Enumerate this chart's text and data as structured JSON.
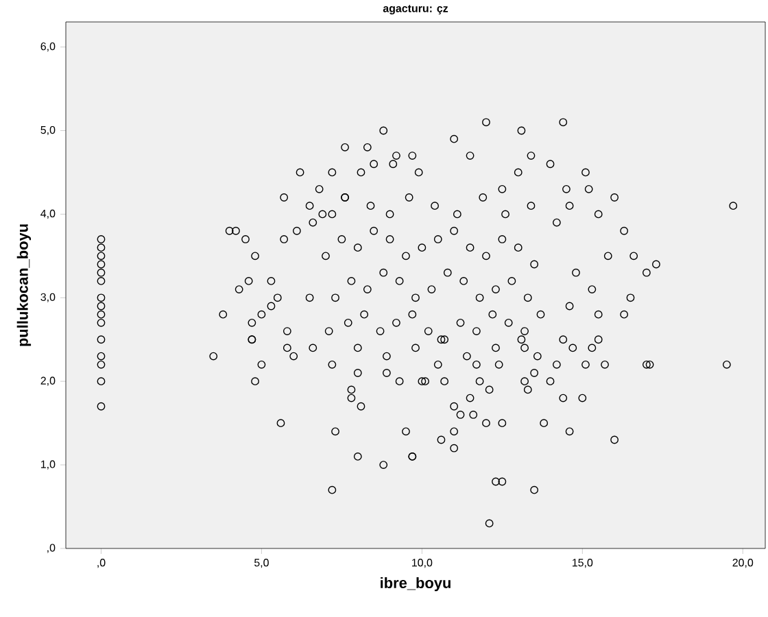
{
  "chart_data": {
    "type": "scatter",
    "title": "agacturu: çz",
    "xlabel": "ibre_boyu",
    "ylabel": "pullukocan_boyu",
    "xlim": [
      -1.1,
      20.7
    ],
    "ylim": [
      0,
      6.3
    ],
    "xticks": [
      {
        "value": 0,
        "label": ",0"
      },
      {
        "value": 5,
        "label": "5,0"
      },
      {
        "value": 10,
        "label": "10,0"
      },
      {
        "value": 15,
        "label": "15,0"
      },
      {
        "value": 20,
        "label": "20,0"
      }
    ],
    "yticks": [
      {
        "value": 0,
        "label": ",0"
      },
      {
        "value": 1,
        "label": "1,0"
      },
      {
        "value": 2,
        "label": "2,0"
      },
      {
        "value": 3,
        "label": "3,0"
      },
      {
        "value": 4,
        "label": "4,0"
      },
      {
        "value": 5,
        "label": "5,0"
      },
      {
        "value": 6,
        "label": "6,0"
      }
    ],
    "grid": false,
    "marker": "circle",
    "series": [
      {
        "color": "#000000",
        "x": [
          0,
          0,
          0,
          0,
          0,
          0,
          0,
          0,
          0,
          0,
          0,
          0,
          0,
          0,
          0,
          8.8,
          7.6,
          8.3,
          6.2,
          7.2,
          5.7,
          4.0,
          4.2,
          4.5,
          4.8,
          5.7,
          6.1,
          4.6,
          4.3,
          3.8,
          5.3,
          4.7,
          5.0,
          4.7,
          5.8,
          5.3,
          5.5,
          6.5,
          6.8,
          6.5,
          7.2,
          6.6,
          7.6,
          8.1,
          9.2,
          9.7,
          8.5,
          9.1,
          12.0,
          14.4,
          13.1,
          11.0,
          11.5,
          13.4,
          14.0,
          15.1,
          14.5,
          15.2,
          16.0,
          19.7,
          15.5,
          14.6,
          16.3,
          15.8,
          16.6,
          17.3,
          17.0,
          15.3,
          16.5,
          16.3,
          15.5,
          14.6,
          14.8,
          13.0,
          12.5,
          9.9,
          3.5,
          4.7,
          5.0,
          4.8,
          5.6,
          7.3,
          8.0,
          8.8,
          7.2,
          9.5,
          9.7,
          7.8,
          7.8,
          8.1,
          5.8,
          6.0,
          6.6,
          7.2,
          8.0,
          8.9,
          9.3,
          10.0,
          12.1,
          12.3,
          12.5,
          13.5,
          9.7,
          11.0,
          10.6,
          11.0,
          12.0,
          12.5,
          13.8,
          14.6,
          16.0,
          11.0,
          11.2,
          11.6,
          14.4,
          15.0,
          13.3,
          11.5,
          19.5,
          17.0,
          17.1,
          15.7,
          15.1,
          14.2,
          15.5,
          15.3,
          14.7,
          13.6,
          13.2,
          14.4,
          13.5,
          14.0,
          13.2,
          11.8,
          10.7,
          10.1,
          12.4,
          11.7,
          10.5,
          12.1,
          7.0,
          7.5,
          8.0,
          8.5,
          9.0,
          9.5,
          10.0,
          10.5,
          11.0,
          11.5,
          12.0,
          12.5,
          13.0,
          13.5,
          7.3,
          7.8,
          8.3,
          8.8,
          9.3,
          9.8,
          10.3,
          10.8,
          11.3,
          11.8,
          12.3,
          12.8,
          13.3,
          7.1,
          7.7,
          8.2,
          8.7,
          9.2,
          9.7,
          10.2,
          10.7,
          11.2,
          11.7,
          12.2,
          12.7,
          13.2,
          13.7,
          6.9,
          7.6,
          8.4,
          9.0,
          9.6,
          10.4,
          11.1,
          11.9,
          12.6,
          13.4,
          8.0,
          8.9,
          9.8,
          10.6,
          11.4,
          12.3,
          13.1,
          14.2
        ],
        "values": [
          3.7,
          3.6,
          3.5,
          3.4,
          3.3,
          3.2,
          3.0,
          2.9,
          2.8,
          2.7,
          2.5,
          2.3,
          2.2,
          2.0,
          1.7,
          5.0,
          4.8,
          4.8,
          4.5,
          4.5,
          4.2,
          3.8,
          3.8,
          3.7,
          3.5,
          3.7,
          3.8,
          3.2,
          3.1,
          2.8,
          3.2,
          2.7,
          2.8,
          2.5,
          2.6,
          2.9,
          3.0,
          3.0,
          4.3,
          4.1,
          4.0,
          3.9,
          4.2,
          4.5,
          4.7,
          4.7,
          4.6,
          4.6,
          5.1,
          5.1,
          5.0,
          4.9,
          4.7,
          4.7,
          4.6,
          4.5,
          4.3,
          4.3,
          4.2,
          4.1,
          4.0,
          4.1,
          3.8,
          3.5,
          3.5,
          3.4,
          3.3,
          3.1,
          3.0,
          2.8,
          2.8,
          2.9,
          3.3,
          4.5,
          4.3,
          4.5,
          2.3,
          2.5,
          2.2,
          2.0,
          1.5,
          1.4,
          1.1,
          1.0,
          0.7,
          1.4,
          1.1,
          1.9,
          1.8,
          1.7,
          2.4,
          2.3,
          2.4,
          2.2,
          2.1,
          2.1,
          2.0,
          2.0,
          0.3,
          0.8,
          0.8,
          0.7,
          1.1,
          1.2,
          1.3,
          1.4,
          1.5,
          1.5,
          1.5,
          1.4,
          1.3,
          1.7,
          1.6,
          1.6,
          1.8,
          1.8,
          1.9,
          1.8,
          2.2,
          2.2,
          2.2,
          2.2,
          2.2,
          2.2,
          2.5,
          2.4,
          2.4,
          2.3,
          2.4,
          2.5,
          2.1,
          2.0,
          2.0,
          2.0,
          2.0,
          2.0,
          2.2,
          2.2,
          2.2,
          1.9,
          3.5,
          3.7,
          3.6,
          3.8,
          3.7,
          3.5,
          3.6,
          3.7,
          3.8,
          3.6,
          3.5,
          3.7,
          3.6,
          3.4,
          3.0,
          3.2,
          3.1,
          3.3,
          3.2,
          3.0,
          3.1,
          3.3,
          3.2,
          3.0,
          3.1,
          3.2,
          3.0,
          2.6,
          2.7,
          2.8,
          2.6,
          2.7,
          2.8,
          2.6,
          2.5,
          2.7,
          2.6,
          2.8,
          2.7,
          2.6,
          2.8,
          4.0,
          4.2,
          4.1,
          4.0,
          4.2,
          4.1,
          4.0,
          4.2,
          4.0,
          4.1,
          2.4,
          2.3,
          2.4,
          2.5,
          2.3,
          2.4,
          2.5,
          3.9
        ]
      }
    ]
  }
}
